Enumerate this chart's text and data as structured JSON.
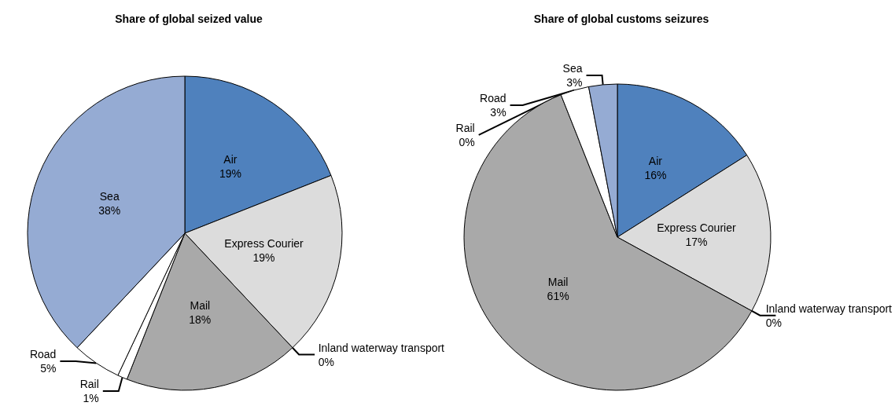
{
  "chart_data": [
    {
      "type": "pie",
      "title": "Share of global seized value",
      "categories": [
        "Air",
        "Express Courier",
        "Inland waterway transport",
        "Mail",
        "Rail",
        "Road",
        "Sea"
      ],
      "values": [
        19,
        19,
        0,
        18,
        1,
        5,
        38
      ],
      "value_labels": [
        "19%",
        "19%",
        "0%",
        "18%",
        "1%",
        "5%",
        "38%"
      ],
      "colors": [
        "#4f81bd",
        "#dcdcdc",
        "#ffffff",
        "#a9a9a9",
        "#ffffff",
        "#ffffff",
        "#95abd3"
      ]
    },
    {
      "type": "pie",
      "title": "Share of global customs seizures",
      "categories": [
        "Air",
        "Express Courier",
        "Inland waterway transport",
        "Mail",
        "Rail",
        "Road",
        "Sea"
      ],
      "values": [
        16,
        17,
        0,
        61,
        0,
        3,
        3
      ],
      "value_labels": [
        "16%",
        "17%",
        "0%",
        "61%",
        "0%",
        "3%",
        "3%"
      ],
      "colors": [
        "#4f81bd",
        "#dcdcdc",
        "#ffffff",
        "#a9a9a9",
        "#ffffff",
        "#ffffff",
        "#95abd3"
      ]
    }
  ]
}
